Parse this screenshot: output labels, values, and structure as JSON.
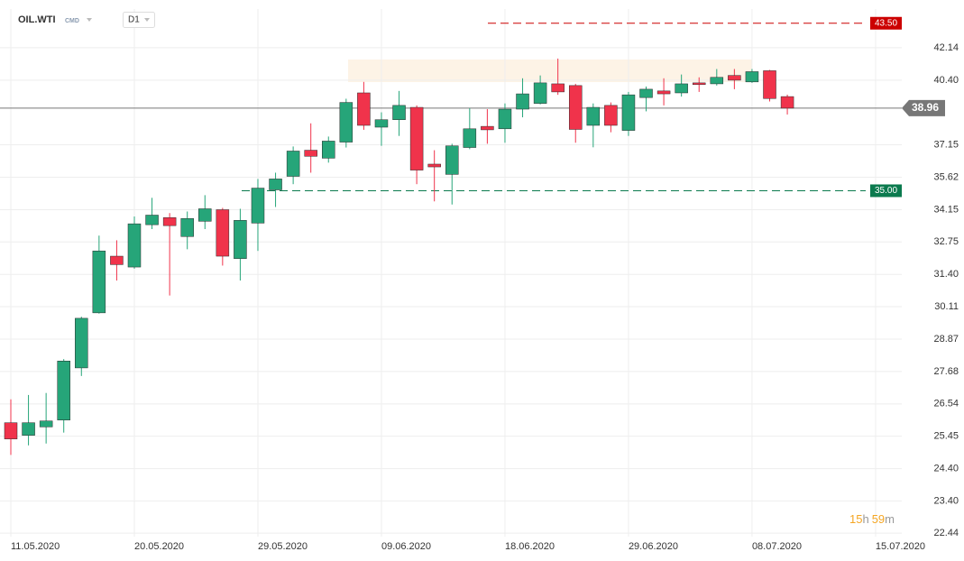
{
  "chart_data": {
    "type": "candlestick",
    "symbol": "OIL.WTI",
    "market": "CMD",
    "timeframe": "D1",
    "countdown": [
      "15",
      "h",
      "59",
      "m"
    ],
    "categories": [
      "11.05.2020",
      null,
      null,
      null,
      null,
      null,
      null,
      "20.05.2020",
      null,
      null,
      null,
      null,
      null,
      null,
      "29.05.2020",
      null,
      null,
      null,
      null,
      null,
      null,
      "09.06.2020",
      null,
      null,
      null,
      null,
      null,
      null,
      "18.06.2020",
      null,
      null,
      null,
      null,
      null,
      null,
      "29.06.2020",
      null,
      null,
      null,
      null,
      null,
      null,
      "08.07.2020",
      null,
      null,
      null,
      null,
      null,
      null,
      "15.07.2020"
    ],
    "open": [
      25.9,
      25.48,
      25.76,
      25.99,
      27.81,
      29.87,
      32.15,
      31.7,
      33.49,
      33.8,
      32.98,
      33.64,
      34.15,
      32.05,
      33.56,
      35.04,
      35.66,
      36.89,
      36.51,
      37.28,
      39.74,
      38.01,
      38.38,
      39.0,
      36.23,
      35.75,
      37.02,
      38.05,
      37.93,
      38.91,
      39.2,
      40.21,
      40.12,
      38.1,
      39.1,
      37.85,
      39.5,
      39.84,
      39.74,
      40.26,
      40.21,
      40.65,
      40.31,
      40.9,
      39.55,
      null,
      null,
      null,
      null,
      null
    ],
    "high": [
      26.7,
      26.85,
      26.92,
      28.13,
      29.72,
      33.02,
      32.82,
      33.85,
      34.68,
      34.0,
      34.07,
      34.8,
      34.23,
      34.19,
      35.54,
      35.83,
      37.07,
      38.2,
      37.55,
      39.44,
      40.31,
      38.75,
      39.84,
      39.1,
      36.89,
      37.2,
      38.96,
      38.91,
      39.2,
      40.5,
      40.65,
      41.55,
      40.21,
      39.2,
      39.25,
      39.79,
      40.07,
      40.5,
      40.7,
      40.55,
      40.99,
      40.99,
      40.99,
      40.94,
      39.65,
      null,
      null,
      null,
      null,
      null
    ],
    "low": [
      24.84,
      25.15,
      25.21,
      25.57,
      27.52,
      29.84,
      31.15,
      31.63,
      33.3,
      30.55,
      32.44,
      33.3,
      31.76,
      31.15,
      32.37,
      34.27,
      35.3,
      35.83,
      36.3,
      37.02,
      37.88,
      37.1,
      37.58,
      35.3,
      34.52,
      34.38,
      36.94,
      37.2,
      37.25,
      38.5,
      39.15,
      39.64,
      37.25,
      37.03,
      37.76,
      37.58,
      38.8,
      39.1,
      39.55,
      39.79,
      40.12,
      39.93,
      40.26,
      39.3,
      38.64,
      null,
      null,
      null,
      null,
      null
    ],
    "close": [
      25.36,
      25.9,
      25.96,
      28.06,
      29.66,
      32.37,
      31.8,
      33.53,
      33.91,
      33.45,
      33.76,
      34.19,
      32.15,
      33.68,
      35.12,
      35.54,
      36.85,
      36.6,
      37.33,
      39.25,
      38.1,
      38.38,
      39.1,
      35.95,
      36.1,
      37.1,
      37.93,
      37.88,
      38.91,
      39.69,
      40.26,
      39.79,
      37.9,
      39.0,
      38.1,
      39.64,
      39.93,
      39.69,
      40.21,
      40.17,
      40.55,
      40.4,
      40.85,
      39.45,
      38.96,
      null,
      null,
      null,
      null,
      null
    ],
    "up_color": "#26a579",
    "down_color": "#f0334b",
    "log_scale": true,
    "grid": true,
    "ylim": [
      22.34,
      44.31
    ],
    "yticks": [
      22.44,
      {
        "value": 23.4,
        "label": "23.40"
      },
      {
        "value": 24.4,
        "label": "24.40"
      },
      25.45,
      26.54,
      27.68,
      28.87,
      30.11,
      {
        "value": 31.4,
        "label": "31.40"
      },
      32.75,
      34.15,
      35.62,
      37.15,
      {
        "value": 40.4,
        "label": "40.40"
      },
      42.14
    ],
    "levels": [
      {
        "value": 43.5,
        "label": "43.50",
        "color": "#cc0000",
        "dashed": true
      },
      {
        "value": 35,
        "label": "35.00",
        "color": "#0b7a4e",
        "dashed": true
      },
      {
        "value": 38.96,
        "label": "38.96",
        "color": "#777777",
        "dashed": false
      }
    ]
  }
}
